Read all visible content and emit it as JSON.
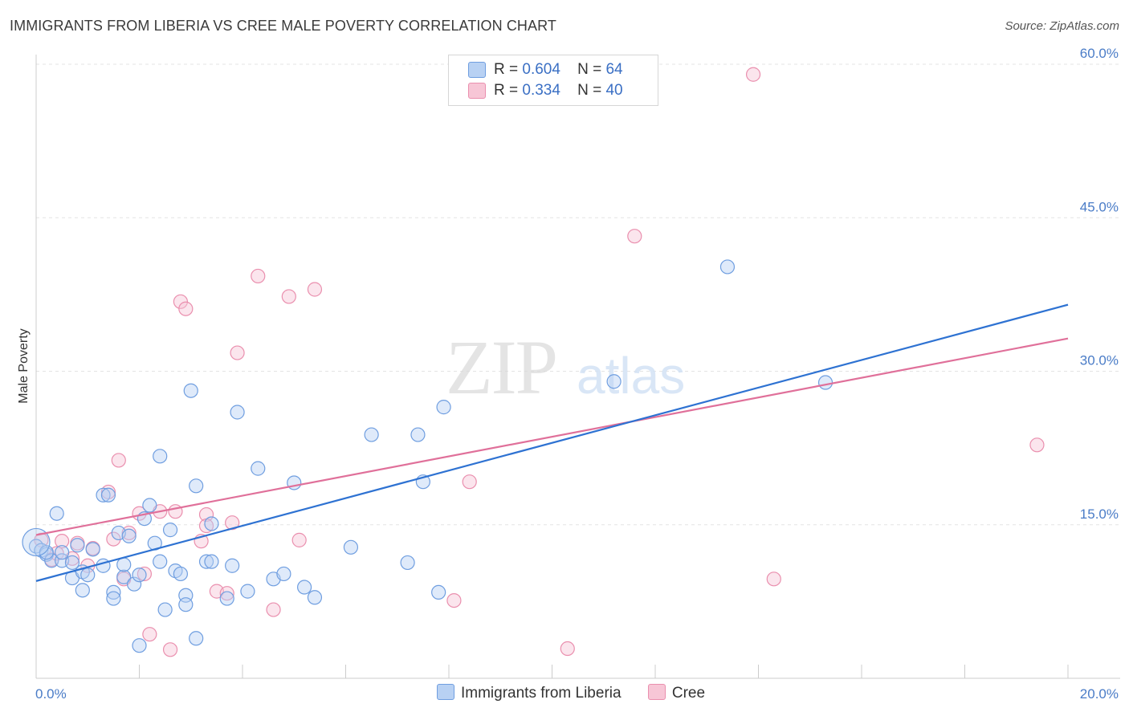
{
  "title": "IMMIGRANTS FROM LIBERIA VS CREE MALE POVERTY CORRELATION CHART",
  "source": "Source: ZipAtlas.com",
  "watermark": {
    "zip": "ZIP",
    "atlas": "atlas"
  },
  "legend": {
    "rows": [
      {
        "r_label": "R =",
        "r_value": "0.604",
        "n_label": "N =",
        "n_value": "64"
      },
      {
        "r_label": "R =",
        "r_value": "0.334",
        "n_label": "N =",
        "n_value": "40"
      }
    ]
  },
  "bottom_legend": [
    "Immigrants from Liberia",
    "Cree"
  ],
  "colors": {
    "blue_fill": "#b8d1f3",
    "blue_stroke": "#6f9ee0",
    "blue_line": "#2e72d2",
    "pink_fill": "#f7c6d6",
    "pink_stroke": "#ea8fae",
    "pink_line": "#e0709a",
    "tick_text": "#4a7cc7"
  },
  "chart_data": {
    "type": "scatter",
    "title": "IMMIGRANTS FROM LIBERIA VS CREE MALE POVERTY CORRELATION CHART",
    "xlabel": "",
    "ylabel": "Male Poverty",
    "xlim": [
      0,
      20
    ],
    "ylim": [
      0,
      60
    ],
    "x_tick_labels": [
      "0.0%",
      "20.0%"
    ],
    "y_ticks": [
      15,
      30,
      45,
      60
    ],
    "y_tick_labels": [
      "15.0%",
      "30.0%",
      "45.0%",
      "60.0%"
    ],
    "grid": true,
    "legend_position": "top-center",
    "series": [
      {
        "name": "Immigrants from Liberia",
        "points": [
          [
            0.0,
            12.9
          ],
          [
            0.1,
            12.5
          ],
          [
            0.2,
            12.1
          ],
          [
            0.3,
            11.5
          ],
          [
            0.4,
            16.1
          ],
          [
            0.5,
            11.5
          ],
          [
            0.5,
            12.3
          ],
          [
            0.7,
            11.3
          ],
          [
            0.7,
            9.8
          ],
          [
            0.8,
            13.0
          ],
          [
            0.9,
            8.6
          ],
          [
            0.9,
            10.4
          ],
          [
            1.0,
            10.1
          ],
          [
            1.1,
            12.6
          ],
          [
            1.3,
            11.0
          ],
          [
            1.3,
            17.9
          ],
          [
            1.4,
            17.9
          ],
          [
            1.5,
            8.4
          ],
          [
            1.5,
            7.8
          ],
          [
            1.6,
            14.2
          ],
          [
            1.7,
            9.9
          ],
          [
            1.7,
            11.1
          ],
          [
            1.8,
            13.9
          ],
          [
            1.9,
            9.2
          ],
          [
            2.0,
            10.1
          ],
          [
            2.0,
            3.2
          ],
          [
            2.1,
            15.6
          ],
          [
            2.2,
            16.9
          ],
          [
            2.3,
            13.2
          ],
          [
            2.4,
            11.4
          ],
          [
            2.4,
            21.7
          ],
          [
            2.5,
            6.7
          ],
          [
            2.6,
            14.5
          ],
          [
            2.7,
            10.5
          ],
          [
            2.8,
            10.2
          ],
          [
            2.9,
            8.1
          ],
          [
            2.9,
            7.2
          ],
          [
            3.0,
            28.1
          ],
          [
            3.1,
            3.9
          ],
          [
            3.1,
            18.8
          ],
          [
            3.3,
            11.4
          ],
          [
            3.4,
            11.4
          ],
          [
            3.4,
            15.1
          ],
          [
            3.7,
            7.8
          ],
          [
            3.8,
            11.0
          ],
          [
            3.9,
            26.0
          ],
          [
            4.1,
            8.5
          ],
          [
            4.3,
            20.5
          ],
          [
            4.6,
            9.7
          ],
          [
            4.8,
            10.2
          ],
          [
            5.0,
            19.1
          ],
          [
            5.2,
            8.9
          ],
          [
            5.4,
            7.9
          ],
          [
            6.1,
            12.8
          ],
          [
            6.5,
            23.8
          ],
          [
            7.2,
            11.3
          ],
          [
            7.4,
            23.8
          ],
          [
            7.5,
            19.2
          ],
          [
            7.8,
            8.4
          ],
          [
            7.9,
            26.5
          ],
          [
            11.2,
            29.0
          ],
          [
            13.4,
            40.2
          ],
          [
            15.3,
            28.9
          ],
          [
            0.2,
            12.3
          ]
        ],
        "trend": {
          "x": [
            0,
            20
          ],
          "y": [
            9.5,
            36.5
          ]
        }
      },
      {
        "name": "Cree",
        "points": [
          [
            0.1,
            13.5
          ],
          [
            0.3,
            11.6
          ],
          [
            0.4,
            12.2
          ],
          [
            0.5,
            13.4
          ],
          [
            0.7,
            11.7
          ],
          [
            0.8,
            13.2
          ],
          [
            1.0,
            11.0
          ],
          [
            1.1,
            12.7
          ],
          [
            1.4,
            18.2
          ],
          [
            1.5,
            13.6
          ],
          [
            1.6,
            21.3
          ],
          [
            1.7,
            9.7
          ],
          [
            1.8,
            14.2
          ],
          [
            2.0,
            16.1
          ],
          [
            2.1,
            10.2
          ],
          [
            2.2,
            4.3
          ],
          [
            2.4,
            16.3
          ],
          [
            2.6,
            2.8
          ],
          [
            2.7,
            16.3
          ],
          [
            2.8,
            36.8
          ],
          [
            2.9,
            36.1
          ],
          [
            3.2,
            13.4
          ],
          [
            3.3,
            16.0
          ],
          [
            3.5,
            8.5
          ],
          [
            3.7,
            8.3
          ],
          [
            3.8,
            15.2
          ],
          [
            3.9,
            31.8
          ],
          [
            4.3,
            39.3
          ],
          [
            4.6,
            6.7
          ],
          [
            4.9,
            37.3
          ],
          [
            5.1,
            13.5
          ],
          [
            5.4,
            38.0
          ],
          [
            8.1,
            7.6
          ],
          [
            8.4,
            19.2
          ],
          [
            10.3,
            2.9
          ],
          [
            11.6,
            43.2
          ],
          [
            13.9,
            59.0
          ],
          [
            14.3,
            9.7
          ],
          [
            19.4,
            22.8
          ],
          [
            3.3,
            14.9
          ]
        ],
        "trend": {
          "x": [
            0,
            20
          ],
          "y": [
            14.0,
            33.2
          ]
        }
      }
    ]
  }
}
